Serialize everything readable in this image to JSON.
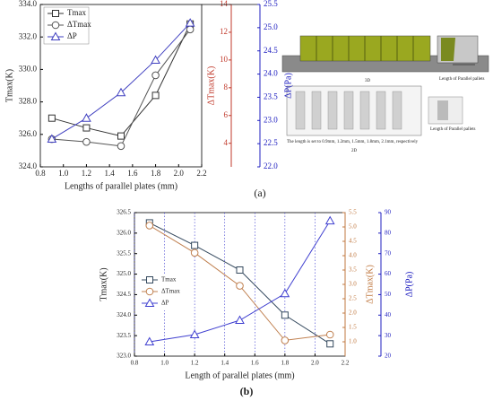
{
  "chart_data": [
    {
      "type": "line",
      "x": [
        0.9,
        1.2,
        1.5,
        1.8,
        2.1
      ],
      "xlabel": "Lengths of parallel plates (mm)",
      "ylabel": "Tmax(K)",
      "y2label": "ΔTmax(K)",
      "y3label": "ΔP(Pa)",
      "xlim": [
        0.8,
        2.2
      ],
      "xticks": [
        0.8,
        {
          "value": 1.0,
          "label": "1.0"
        },
        1.2,
        1.4,
        1.6,
        1.8,
        {
          "value": 2.0,
          "label": "2.0"
        },
        2.2
      ],
      "ylim": [
        324,
        334
      ],
      "yticks": [
        {
          "value": 324,
          "label": "324.0"
        },
        {
          "value": 326,
          "label": "326.0"
        },
        {
          "value": 328,
          "label": "328.0"
        },
        {
          "value": 330,
          "label": "330.0"
        },
        {
          "value": 332,
          "label": "332.0"
        },
        {
          "value": 334,
          "label": "334.0"
        }
      ],
      "y2lim": [
        2.3,
        14
      ],
      "y2ticks": [
        4,
        6,
        8,
        10,
        12,
        14
      ],
      "y2color": "#c0392b",
      "y3lim": [
        22,
        25.5
      ],
      "y3ticks": [
        {
          "value": 22,
          "label": "22.0"
        },
        22.5,
        {
          "value": 23,
          "label": "23.0"
        },
        23.5,
        {
          "value": 24,
          "label": "24.0"
        },
        24.5,
        {
          "value": 25,
          "label": "25.0"
        },
        25.5
      ],
      "y3color": "#2020c0",
      "legend": "upper left",
      "grid": false,
      "series": [
        {
          "name": "Tmax",
          "color": "#333333",
          "marker": "square",
          "values": [
            327.0,
            326.4,
            325.9,
            328.4,
            332.8
          ]
        },
        {
          "name": "ΔTmax",
          "color": "#555555",
          "marker": "circle",
          "axis": "y2",
          "values": [
            4.3,
            4.1,
            3.8,
            8.9,
            12.2
          ]
        },
        {
          "name": "ΔP",
          "color": "#4040c0",
          "marker": "triangle",
          "axis": "y3",
          "values": [
            22.6,
            23.05,
            23.6,
            24.3,
            25.1
          ]
        }
      ]
    },
    {
      "type": "line",
      "x": [
        0.9,
        1.2,
        1.5,
        1.8,
        2.1
      ],
      "xlabel": "Length of parallel plates (mm)",
      "ylabel": "Tmax(K)",
      "y2label": "ΔTmax(K)",
      "y3label": "ΔP(Pa)",
      "xlim": [
        0.8,
        2.2
      ],
      "xticks": [
        0.8,
        {
          "value": 1.0,
          "label": "1.0"
        },
        1.2,
        1.4,
        1.6,
        1.8,
        {
          "value": 2.0,
          "label": "2.0"
        },
        2.2
      ],
      "ylim": [
        323,
        326.5
      ],
      "yticks": [
        {
          "value": 323,
          "label": "323.0"
        },
        323.5,
        {
          "value": 324,
          "label": "324.0"
        },
        324.5,
        {
          "value": 325,
          "label": "325.0"
        },
        325.5,
        {
          "value": 326,
          "label": "326.0"
        },
        326.5
      ],
      "y2lim": [
        0.5,
        5.5
      ],
      "y2ticks": [
        {
          "value": 1,
          "label": "1.0"
        },
        1.5,
        {
          "value": 2,
          "label": "2.0"
        },
        2.5,
        {
          "value": 3,
          "label": "3.0"
        },
        3.5,
        {
          "value": 4,
          "label": "4.0"
        },
        4.5,
        {
          "value": 5,
          "label": "5.0"
        },
        5.5
      ],
      "y2color": "#c07840",
      "y3lim": [
        20,
        90
      ],
      "y3ticks": [
        20,
        30,
        40,
        50,
        60,
        70,
        80,
        90
      ],
      "y3color": "#2020c0",
      "legend": "center left",
      "grid": true,
      "series": [
        {
          "name": "Tmax",
          "color": "#34495e",
          "marker": "square",
          "values": [
            326.25,
            325.7,
            325.1,
            324.0,
            323.3
          ]
        },
        {
          "name": "ΔTmax",
          "color": "#c08050",
          "marker": "circle",
          "axis": "y2",
          "values": [
            5.05,
            4.1,
            2.95,
            1.05,
            1.25
          ]
        },
        {
          "name": "ΔP",
          "color": "#4040d0",
          "marker": "triangle",
          "axis": "y3",
          "values": [
            27,
            30.5,
            37.5,
            50.5,
            86
          ]
        }
      ]
    }
  ],
  "diagram": {
    "label_3d": "3D",
    "pointer_3d": "Length of Parallel pallets",
    "label_2d": "2D",
    "pointer_2d": "Length of Parallel pallets",
    "note_2d": "The length is set to 0.9mm, 1.2mm, 1.5mm, 1.8mm, 2.1mm, respectively"
  },
  "captions": [
    "(a)",
    "(b)"
  ]
}
